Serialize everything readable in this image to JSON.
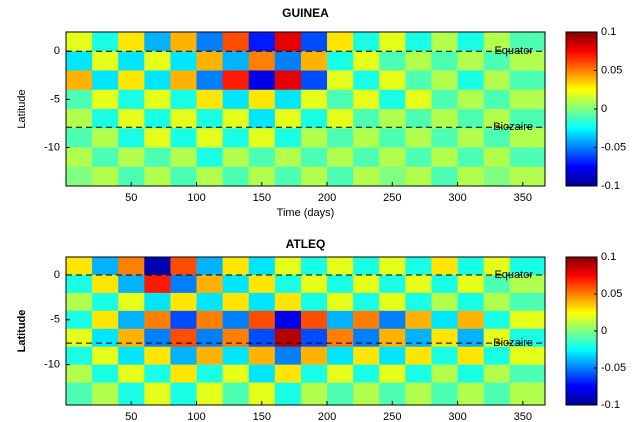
{
  "chart_data": [
    {
      "type": "heatmap",
      "title": "GUINEA",
      "xlabel": "Time (days)",
      "ylabel": "Latitude",
      "xlim": [
        0,
        367
      ],
      "ylim": [
        -14,
        2
      ],
      "xticks": [
        50,
        100,
        150,
        200,
        250,
        300,
        350
      ],
      "yticks": [
        0,
        -5,
        -10
      ],
      "x": [
        10,
        30,
        50,
        70,
        90,
        110,
        130,
        150,
        170,
        190,
        210,
        230,
        250,
        270,
        290,
        310,
        330,
        350
      ],
      "y": [
        1,
        -1,
        -3,
        -5,
        -7,
        -9,
        -11,
        -13
      ],
      "z": [
        [
          0.02,
          -0.02,
          0.03,
          -0.04,
          0.04,
          -0.05,
          0.06,
          -0.07,
          0.08,
          -0.06,
          0.03,
          -0.02,
          0.02,
          -0.02,
          0.01,
          -0.02,
          0.01,
          -0.01
        ],
        [
          -0.03,
          0.02,
          -0.03,
          0.02,
          -0.03,
          0.04,
          -0.04,
          0.05,
          -0.05,
          0.04,
          -0.02,
          0.02,
          -0.01,
          0.01,
          -0.01,
          0.01,
          -0.01,
          0.01
        ],
        [
          0.04,
          -0.03,
          0.03,
          -0.03,
          0.04,
          -0.05,
          0.07,
          -0.08,
          0.08,
          -0.06,
          0.02,
          -0.02,
          0.02,
          -0.01,
          0.01,
          -0.02,
          0.01,
          -0.01
        ],
        [
          -0.01,
          0.02,
          -0.02,
          0.02,
          -0.02,
          0.03,
          -0.03,
          0.03,
          -0.03,
          0.02,
          -0.01,
          0.02,
          -0.02,
          0.02,
          -0.01,
          0.01,
          -0.01,
          0.01
        ],
        [
          0.01,
          -0.02,
          0.02,
          -0.02,
          0.02,
          -0.02,
          0.02,
          -0.03,
          0.02,
          -0.02,
          0.02,
          -0.01,
          0.01,
          -0.01,
          0.01,
          -0.01,
          0.01,
          -0.01
        ],
        [
          -0.01,
          0.01,
          -0.02,
          0.02,
          -0.02,
          0.02,
          -0.02,
          0.02,
          -0.02,
          0.01,
          -0.01,
          0.01,
          -0.01,
          0.01,
          -0.01,
          0.01,
          -0.01,
          0.01
        ],
        [
          0.01,
          -0.01,
          0.01,
          -0.01,
          0.01,
          -0.02,
          0.01,
          -0.01,
          0.01,
          -0.01,
          0.01,
          -0.01,
          0.01,
          -0.01,
          0.01,
          -0.01,
          0.01,
          -0.01
        ],
        [
          0,
          0.01,
          -0.01,
          0.01,
          -0.01,
          0.01,
          -0.01,
          0.01,
          -0.01,
          0.01,
          -0.01,
          0.01,
          0,
          0.01,
          -0.01,
          0.01,
          0,
          0.01
        ]
      ],
      "clim": [
        -0.1,
        0.1
      ],
      "cticks": [
        0.1,
        0.05,
        0,
        -0.05,
        -0.1
      ],
      "lines": [
        {
          "label": "Equator",
          "y": 0
        },
        {
          "label": "Biozaire",
          "y": -7.9
        }
      ]
    },
    {
      "type": "heatmap",
      "title": "ATLEQ",
      "ylabel": "Latitude",
      "xlim": [
        0,
        367
      ],
      "ylim": [
        -14.5,
        2
      ],
      "xticks": [
        50,
        100,
        150,
        200,
        250,
        300,
        350
      ],
      "yticks": [
        0,
        -5,
        -10
      ],
      "x": [
        10,
        30,
        50,
        70,
        90,
        110,
        130,
        150,
        170,
        190,
        210,
        230,
        250,
        270,
        290,
        310,
        330,
        350
      ],
      "y": [
        1,
        -1,
        -3,
        -5,
        -7,
        -9,
        -11,
        -13
      ],
      "z": [
        [
          0.03,
          -0.04,
          0.05,
          -0.09,
          0.06,
          -0.04,
          0.03,
          -0.03,
          0.02,
          -0.02,
          0.02,
          -0.02,
          0.02,
          -0.02,
          0.03,
          -0.02,
          0.02,
          -0.02
        ],
        [
          -0.02,
          0.03,
          -0.04,
          0.07,
          -0.05,
          0.04,
          -0.03,
          0.03,
          -0.02,
          0.02,
          -0.02,
          0.02,
          -0.02,
          0.02,
          -0.02,
          0.02,
          -0.01,
          0.01
        ],
        [
          0.01,
          -0.02,
          0.02,
          -0.03,
          0.03,
          -0.03,
          0.03,
          -0.03,
          0.03,
          -0.02,
          0.02,
          -0.02,
          0.02,
          -0.02,
          0.01,
          -0.02,
          0.01,
          -0.01
        ],
        [
          -0.02,
          0.03,
          -0.04,
          0.05,
          -0.06,
          0.05,
          -0.05,
          0.06,
          -0.08,
          0.06,
          -0.04,
          0.05,
          -0.05,
          0.04,
          -0.03,
          0.04,
          -0.02,
          0.02
        ],
        [
          0.02,
          -0.03,
          0.04,
          -0.05,
          0.06,
          -0.05,
          0.05,
          -0.06,
          0.09,
          -0.06,
          0.05,
          -0.05,
          0.04,
          -0.04,
          0.03,
          -0.04,
          0.02,
          -0.02
        ],
        [
          -0.02,
          0.02,
          -0.03,
          0.03,
          -0.04,
          0.04,
          -0.03,
          0.04,
          -0.05,
          0.04,
          -0.03,
          0.03,
          -0.03,
          0.03,
          -0.02,
          0.03,
          -0.02,
          0.02
        ],
        [
          0.01,
          -0.02,
          0.02,
          -0.02,
          0.03,
          -0.02,
          0.02,
          -0.03,
          0.03,
          -0.02,
          0.02,
          -0.02,
          0.02,
          -0.02,
          0.01,
          -0.02,
          0.01,
          -0.01
        ],
        [
          -0.01,
          0.01,
          -0.02,
          0.02,
          -0.02,
          0.02,
          -0.01,
          0.02,
          -0.02,
          0.01,
          -0.01,
          0.01,
          -0.01,
          0.01,
          -0.01,
          0.01,
          -0.01,
          0.01
        ]
      ],
      "clim": [
        -0.1,
        0.1
      ],
      "cticks": [
        0.1,
        0.05,
        0,
        -0.05,
        -0.1
      ],
      "lines": [
        {
          "label": "Equator",
          "y": 0
        },
        {
          "label": "Biozaire",
          "y": -7.6
        }
      ]
    }
  ]
}
